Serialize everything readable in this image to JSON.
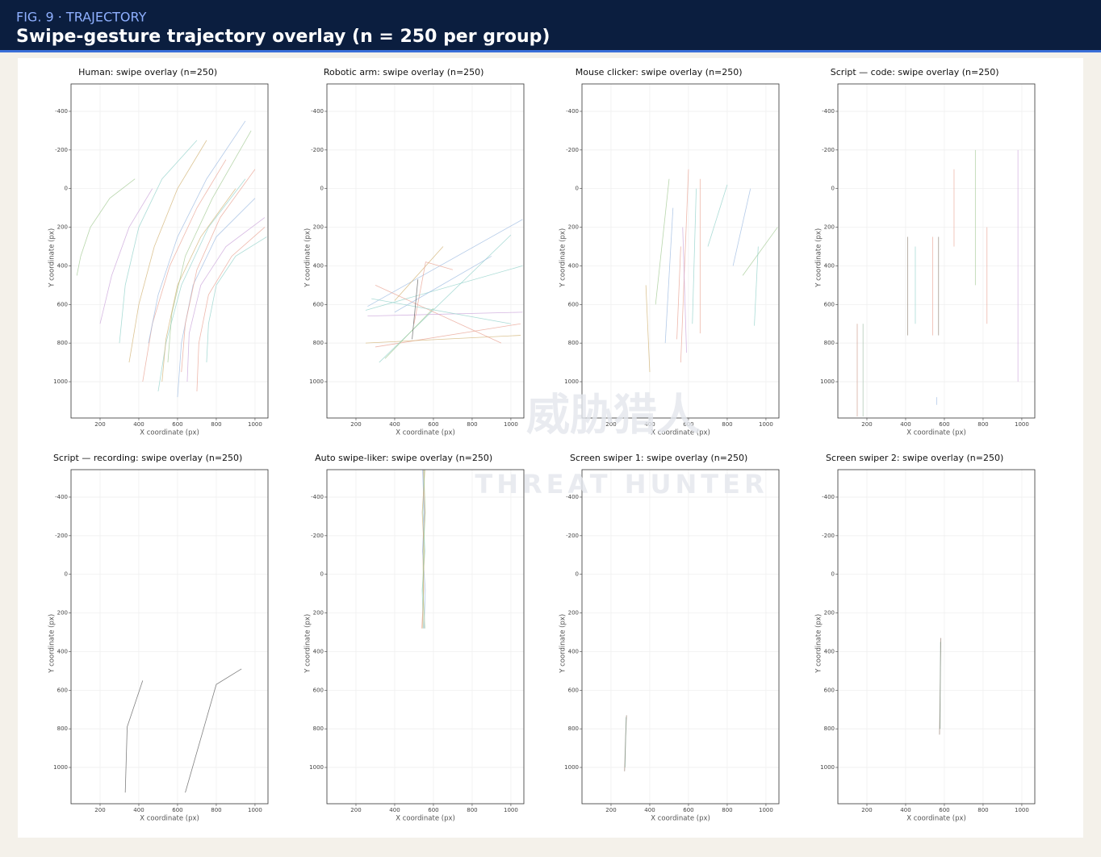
{
  "header": {
    "kicker": "FIG. 9 · TRAJECTORY",
    "title": "Swipe-gesture trajectory overlay (n = 250 per group)"
  },
  "watermark": {
    "cn": "威胁猎人",
    "en": "THREAT HUNTER"
  },
  "chart_data": [
    {
      "type": "line",
      "title": "Human: swipe overlay (n=250)",
      "xlabel": "X coordinate (px)",
      "ylabel": "Y coordinate (px)",
      "xlim": [
        50,
        1067
      ],
      "ylim": [
        1188,
        -542
      ],
      "xticks": [
        200,
        400,
        600,
        800,
        1000
      ],
      "yticks": [
        -400,
        -200,
        0,
        200,
        400,
        600,
        800,
        1000
      ],
      "grid": true,
      "trajectories": [
        {
          "color": "#e8a090",
          "x": [
            420,
            470,
            560,
            700,
            850
          ],
          "y": [
            1000,
            700,
            400,
            100,
            -150
          ]
        },
        {
          "color": "#8fd0c8",
          "x": [
            500,
            540,
            620,
            760,
            950
          ],
          "y": [
            1050,
            800,
            500,
            200,
            -50
          ]
        },
        {
          "color": "#9ab8e0",
          "x": [
            600,
            620,
            680,
            800,
            1000
          ],
          "y": [
            1080,
            800,
            500,
            250,
            50
          ]
        },
        {
          "color": "#c8a0d8",
          "x": [
            650,
            660,
            720,
            850,
            1050
          ],
          "y": [
            1000,
            750,
            500,
            300,
            150
          ]
        },
        {
          "color": "#d0b070",
          "x": [
            350,
            400,
            480,
            600,
            750
          ],
          "y": [
            900,
            600,
            300,
            0,
            -250
          ]
        },
        {
          "color": "#a0c890",
          "x": [
            550,
            570,
            640,
            780,
            980
          ],
          "y": [
            900,
            650,
            350,
            50,
            -300
          ]
        },
        {
          "color": "#e8a090",
          "x": [
            700,
            710,
            760,
            880,
            1050
          ],
          "y": [
            1050,
            800,
            550,
            350,
            200
          ]
        },
        {
          "color": "#8fd0c8",
          "x": [
            300,
            330,
            400,
            520,
            700
          ],
          "y": [
            800,
            500,
            200,
            -50,
            -250
          ]
        },
        {
          "color": "#9ab8e0",
          "x": [
            450,
            500,
            600,
            750,
            950
          ],
          "y": [
            800,
            550,
            250,
            -50,
            -350
          ]
        },
        {
          "color": "#a0c890",
          "x": [
            80,
            100,
            150,
            250,
            380
          ],
          "y": [
            450,
            350,
            200,
            50,
            -50
          ]
        },
        {
          "color": "#e8a090",
          "x": [
            620,
            640,
            700,
            820,
            1000
          ],
          "y": [
            950,
            700,
            420,
            150,
            -100
          ]
        },
        {
          "color": "#c8a0d8",
          "x": [
            200,
            260,
            350,
            470
          ],
          "y": [
            700,
            450,
            200,
            0
          ]
        },
        {
          "color": "#8fd0c8",
          "x": [
            750,
            760,
            800,
            900,
            1060
          ],
          "y": [
            900,
            700,
            500,
            350,
            250
          ]
        },
        {
          "color": "#d0b070",
          "x": [
            520,
            540,
            600,
            720,
            900
          ],
          "y": [
            1000,
            780,
            500,
            250,
            0
          ]
        }
      ]
    },
    {
      "type": "line",
      "title": "Robotic arm: swipe overlay (n=250)",
      "xlabel": "X coordinate (px)",
      "ylabel": "Y coordinate (px)",
      "xlim": [
        50,
        1067
      ],
      "ylim": [
        1188,
        -542
      ],
      "xticks": [
        200,
        400,
        600,
        800,
        1000
      ],
      "yticks": [
        -400,
        -200,
        0,
        200,
        400,
        600,
        800,
        1000
      ],
      "grid": true,
      "trajectories": [
        {
          "color": "#8fd0c8",
          "x": [
            250,
            1060
          ],
          "y": [
            630,
            400
          ]
        },
        {
          "color": "#9ab8e0",
          "x": [
            260,
            1060
          ],
          "y": [
            610,
            160
          ]
        },
        {
          "color": "#e8a090",
          "x": [
            300,
            1050
          ],
          "y": [
            820,
            700
          ]
        },
        {
          "color": "#d0b070",
          "x": [
            250,
            1050
          ],
          "y": [
            800,
            760
          ]
        },
        {
          "color": "#8fd0c8",
          "x": [
            320,
            1000
          ],
          "y": [
            900,
            240
          ]
        },
        {
          "color": "#e8a090",
          "x": [
            300,
            950
          ],
          "y": [
            500,
            800
          ]
        },
        {
          "color": "#d0b070",
          "x": [
            400,
            650
          ],
          "y": [
            580,
            300
          ]
        },
        {
          "color": "#c8a0d8",
          "x": [
            260,
            1060
          ],
          "y": [
            660,
            640
          ]
        },
        {
          "color": "#e8a090",
          "x": [
            500,
            560,
            700
          ],
          "y": [
            700,
            380,
            420
          ]
        },
        {
          "color": "#a0c890",
          "x": [
            350,
            600
          ],
          "y": [
            880,
            620
          ]
        },
        {
          "color": "#8fd0c8",
          "x": [
            280,
            1000
          ],
          "y": [
            570,
            700
          ]
        },
        {
          "color": "#9ab8e0",
          "x": [
            400,
            900
          ],
          "y": [
            640,
            350
          ]
        },
        {
          "color": "#555555",
          "x": [
            490,
            520
          ],
          "y": [
            780,
            470
          ]
        }
      ]
    },
    {
      "type": "line",
      "title": "Mouse clicker: swipe overlay (n=250)",
      "xlabel": "X coordinate (px)",
      "ylabel": "Y coordinate (px)",
      "xlim": [
        50,
        1067
      ],
      "ylim": [
        1188,
        -542
      ],
      "xticks": [
        200,
        400,
        600,
        800,
        1000
      ],
      "yticks": [
        -400,
        -200,
        0,
        200,
        400,
        600,
        800,
        1000
      ],
      "grid": true,
      "trajectories": [
        {
          "color": "#e8a090",
          "x": [
            560,
            600
          ],
          "y": [
            900,
            -100
          ]
        },
        {
          "color": "#8fd0c8",
          "x": [
            620,
            640
          ],
          "y": [
            700,
            0
          ]
        },
        {
          "color": "#9ab8e0",
          "x": [
            480,
            520
          ],
          "y": [
            800,
            100
          ]
        },
        {
          "color": "#e8a090",
          "x": [
            660,
            660
          ],
          "y": [
            750,
            -50
          ]
        },
        {
          "color": "#c8a0d8",
          "x": [
            590,
            570
          ],
          "y": [
            850,
            200
          ]
        },
        {
          "color": "#a0c890",
          "x": [
            430,
            500
          ],
          "y": [
            600,
            -50
          ]
        },
        {
          "color": "#8fd0c8",
          "x": [
            700,
            800
          ],
          "y": [
            300,
            -20
          ]
        },
        {
          "color": "#9ab8e0",
          "x": [
            830,
            920
          ],
          "y": [
            400,
            0
          ]
        },
        {
          "color": "#a0c890",
          "x": [
            880,
            1060
          ],
          "y": [
            450,
            200
          ]
        },
        {
          "color": "#e8a090",
          "x": [
            540,
            560
          ],
          "y": [
            780,
            300
          ]
        },
        {
          "color": "#d0b070",
          "x": [
            400,
            380
          ],
          "y": [
            950,
            500
          ]
        },
        {
          "color": "#8fd0c8",
          "x": [
            940,
            960
          ],
          "y": [
            710,
            300
          ]
        }
      ]
    },
    {
      "type": "line",
      "title": "Script — code: swipe overlay (n=250)",
      "xlabel": "X coordinate (px)",
      "ylabel": "Y coordinate (px)",
      "xlim": [
        50,
        1067
      ],
      "ylim": [
        1188,
        -542
      ],
      "xticks": [
        200,
        400,
        600,
        800,
        1000
      ],
      "yticks": [
        -400,
        -200,
        0,
        200,
        400,
        600,
        800,
        1000
      ],
      "grid": true,
      "trajectories": [
        {
          "color": "#8a7a6a",
          "x": [
            410,
            410
          ],
          "y": [
            250,
            760
          ]
        },
        {
          "color": "#8a7a6a",
          "x": [
            570,
            570
          ],
          "y": [
            250,
            760
          ]
        },
        {
          "color": "#c89080",
          "x": [
            150,
            150
          ],
          "y": [
            700,
            1180
          ]
        },
        {
          "color": "#9ab8a0",
          "x": [
            180,
            180
          ],
          "y": [
            700,
            1180
          ]
        },
        {
          "color": "#e8a090",
          "x": [
            540,
            540
          ],
          "y": [
            250,
            760
          ]
        },
        {
          "color": "#8fd0c8",
          "x": [
            450,
            450
          ],
          "y": [
            300,
            700
          ]
        },
        {
          "color": "#9ab8e0",
          "x": [
            560,
            560
          ],
          "y": [
            1080,
            1120
          ]
        },
        {
          "color": "#e8a090",
          "x": [
            650,
            650
          ],
          "y": [
            -100,
            300
          ]
        },
        {
          "color": "#c8a0d8",
          "x": [
            980,
            980
          ],
          "y": [
            -200,
            1000
          ]
        },
        {
          "color": "#a0c890",
          "x": [
            760,
            760
          ],
          "y": [
            -200,
            500
          ]
        },
        {
          "color": "#e8a090",
          "x": [
            820,
            820
          ],
          "y": [
            200,
            700
          ]
        }
      ]
    },
    {
      "type": "line",
      "title": "Script — recording: swipe overlay (n=250)",
      "xlabel": "X coordinate (px)",
      "ylabel": "Y coordinate (px)",
      "xlim": [
        50,
        1067
      ],
      "ylim": [
        1188,
        -542
      ],
      "xticks": [
        200,
        400,
        600,
        800,
        1000
      ],
      "yticks": [
        -400,
        -200,
        0,
        200,
        400,
        600,
        800,
        1000
      ],
      "grid": true,
      "trajectories": [
        {
          "color": "#555555",
          "x": [
            330,
            340,
            420
          ],
          "y": [
            1130,
            790,
            550
          ]
        },
        {
          "color": "#555555",
          "x": [
            640,
            800,
            930
          ],
          "y": [
            1130,
            570,
            490
          ]
        }
      ]
    },
    {
      "type": "line",
      "title": "Auto swipe-liker: swipe overlay (n=250)",
      "xlabel": "X coordinate (px)",
      "ylabel": "Y coordinate (px)",
      "xlim": [
        50,
        1067
      ],
      "ylim": [
        1188,
        -542
      ],
      "xticks": [
        200,
        400,
        600,
        800,
        1000
      ],
      "yticks": [
        -400,
        -200,
        0,
        200,
        400,
        600,
        800,
        1000
      ],
      "grid": true,
      "trajectories": [
        {
          "color": "#e8a090",
          "x": [
            540,
            550,
            545,
            555,
            548
          ],
          "y": [
            280,
            80,
            -120,
            -320,
            -540
          ]
        },
        {
          "color": "#8fd0c8",
          "x": [
            548,
            542,
            556,
            546,
            552
          ],
          "y": [
            280,
            80,
            -120,
            -320,
            -540
          ]
        },
        {
          "color": "#9ab8e0",
          "x": [
            552,
            558,
            544,
            552,
            544
          ],
          "y": [
            280,
            80,
            -120,
            -320,
            -540
          ]
        },
        {
          "color": "#d0b070",
          "x": [
            545,
            548,
            552,
            542,
            556
          ],
          "y": [
            280,
            80,
            -120,
            -320,
            -540
          ]
        },
        {
          "color": "#a0c890",
          "x": [
            556,
            546,
            548,
            558,
            550
          ],
          "y": [
            280,
            80,
            -120,
            -320,
            -540
          ]
        }
      ]
    },
    {
      "type": "line",
      "title": "Screen swiper 1: swipe overlay (n=250)",
      "xlabel": "X coordinate (px)",
      "ylabel": "Y coordinate (px)",
      "xlim": [
        50,
        1067
      ],
      "ylim": [
        1188,
        -542
      ],
      "xticks": [
        200,
        400,
        600,
        800,
        1000
      ],
      "yticks": [
        -400,
        -200,
        0,
        200,
        400,
        600,
        800,
        1000
      ],
      "grid": true,
      "trajectories": [
        {
          "color": "#8a7060",
          "x": [
            270,
            275,
            280
          ],
          "y": [
            1020,
            850,
            730
          ]
        },
        {
          "color": "#80a090",
          "x": [
            272,
            278
          ],
          "y": [
            1000,
            740
          ]
        }
      ]
    },
    {
      "type": "line",
      "title": "Screen swiper 2: swipe overlay (n=250)",
      "xlabel": "X coordinate (px)",
      "ylabel": "Y coordinate (px)",
      "xlim": [
        50,
        1067
      ],
      "ylim": [
        1188,
        -542
      ],
      "xticks": [
        200,
        400,
        600,
        800,
        1000
      ],
      "yticks": [
        -400,
        -200,
        0,
        200,
        400,
        600,
        800,
        1000
      ],
      "grid": true,
      "trajectories": [
        {
          "color": "#8a7060",
          "x": [
            575,
            578,
            582
          ],
          "y": [
            830,
            600,
            330
          ]
        },
        {
          "color": "#80a090",
          "x": [
            578,
            580
          ],
          "y": [
            800,
            350
          ]
        }
      ]
    }
  ]
}
